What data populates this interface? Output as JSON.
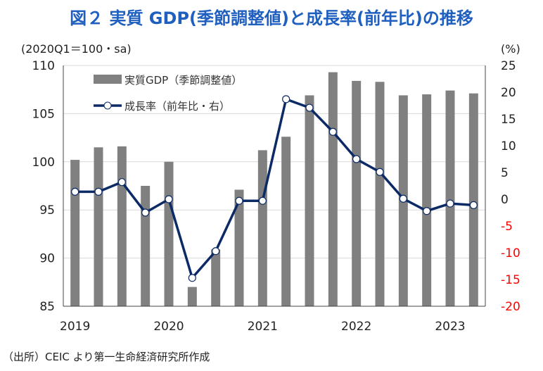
{
  "title": "図２ 実質 GDP(季節調整値)と成長率(前年比)の推移",
  "source": "（出所）CEIC より第一生命経済研究所作成",
  "chart_data": {
    "type": "bar+line",
    "title": "図２ 実質 GDP(季節調整値)と成長率(前年比)の推移",
    "left_axis_label": "(2020Q1＝100・sa)",
    "right_axis_label": "(%)",
    "left_ylim": [
      85,
      110
    ],
    "left_ticks": [
      85,
      90,
      95,
      100,
      105,
      110
    ],
    "right_ylim": [
      -20,
      25
    ],
    "right_ticks": [
      -20,
      -15,
      -10,
      -5,
      0,
      5,
      10,
      15,
      20,
      25
    ],
    "negative_tick_color": "#ff0000",
    "grid": true,
    "legend_placement": "top-left",
    "x_tick_labels": [
      {
        "label": "2019",
        "index": 0
      },
      {
        "label": "2020",
        "index": 4
      },
      {
        "label": "2021",
        "index": 8
      },
      {
        "label": "2022",
        "index": 12
      },
      {
        "label": "2023",
        "index": 16
      }
    ],
    "categories": [
      "2019Q1",
      "2019Q2",
      "2019Q3",
      "2019Q4",
      "2020Q1",
      "2020Q2",
      "2020Q3",
      "2020Q4",
      "2021Q1",
      "2021Q2",
      "2021Q3",
      "2021Q4",
      "2022Q1",
      "2022Q2",
      "2022Q3",
      "2022Q4",
      "2023Q1",
      "2023Q2"
    ],
    "series": [
      {
        "name": "実質GDP（季節調整値）",
        "type": "bar",
        "axis": "left",
        "color": "#808080",
        "values": [
          100.2,
          101.5,
          101.6,
          97.5,
          100.0,
          87.0,
          90.9,
          97.1,
          101.2,
          102.6,
          106.9,
          109.3,
          108.4,
          108.3,
          106.9,
          107.0,
          107.4,
          107.1
        ]
      },
      {
        "name": "成長率（前年比・右）",
        "type": "line",
        "axis": "right",
        "color": "#0b2a66",
        "values": [
          1.4,
          1.4,
          3.2,
          -2.5,
          0.0,
          -14.7,
          -9.7,
          -0.3,
          -0.3,
          18.7,
          17.1,
          12.6,
          7.5,
          5.1,
          0.1,
          -2.2,
          -0.8,
          -1.1
        ]
      }
    ]
  }
}
